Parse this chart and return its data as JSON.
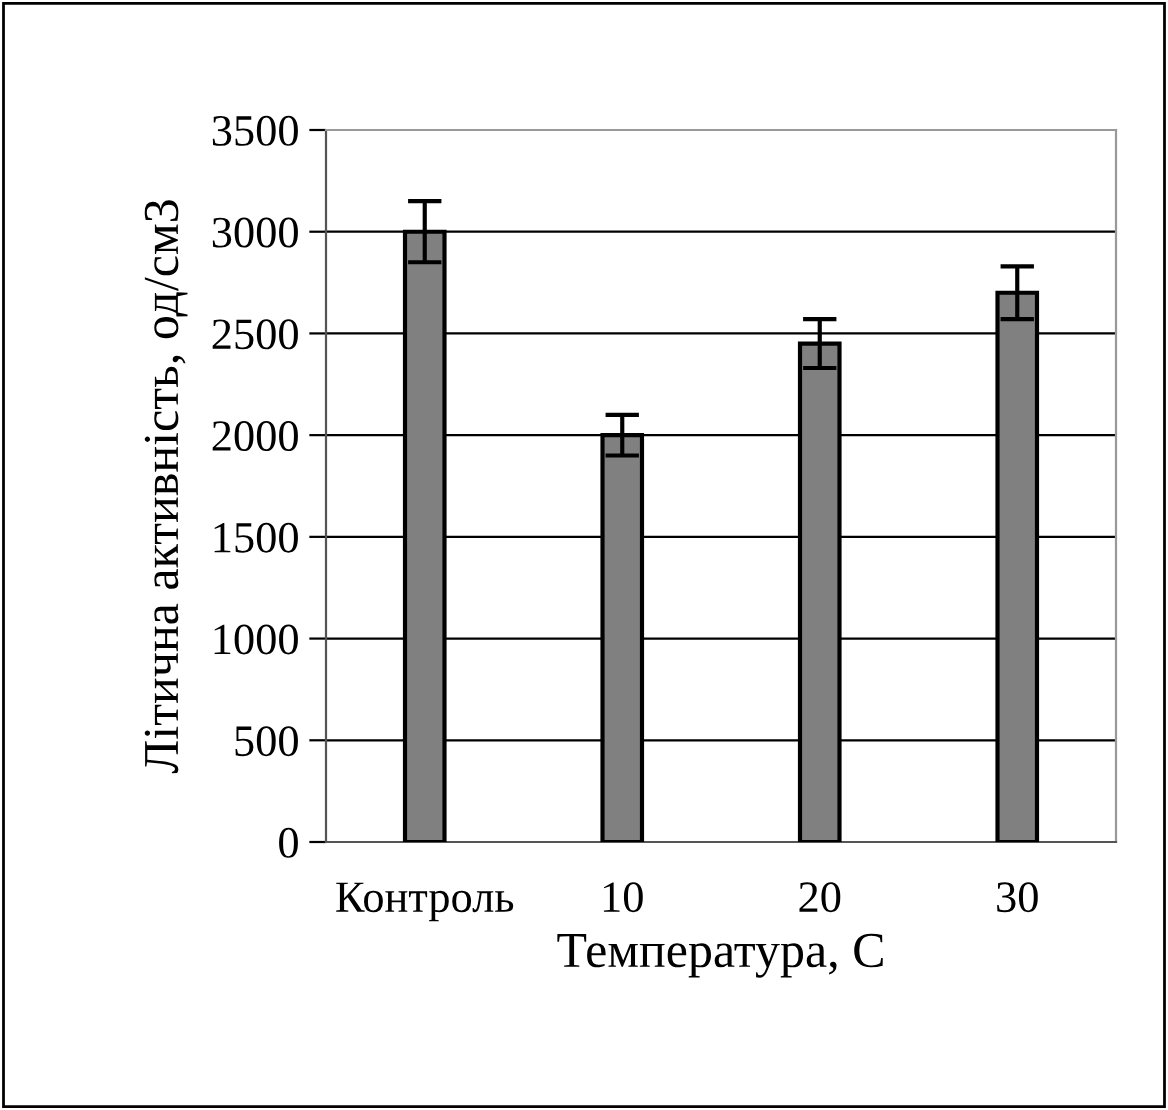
{
  "chart_data": {
    "type": "bar",
    "xlabel": "Температура, С",
    "ylabel": "Літична активність, од/см3",
    "categories": [
      "Контроль",
      "10",
      "20",
      "30"
    ],
    "values": [
      3000,
      2000,
      2450,
      2700
    ],
    "errors": [
      150,
      100,
      120,
      130
    ],
    "color": "#808080",
    "ylim": [
      0,
      3500
    ],
    "yticks": [
      0,
      500,
      1000,
      1500,
      2000,
      2500,
      3000,
      3500
    ],
    "grid": "y",
    "legend": false
  }
}
